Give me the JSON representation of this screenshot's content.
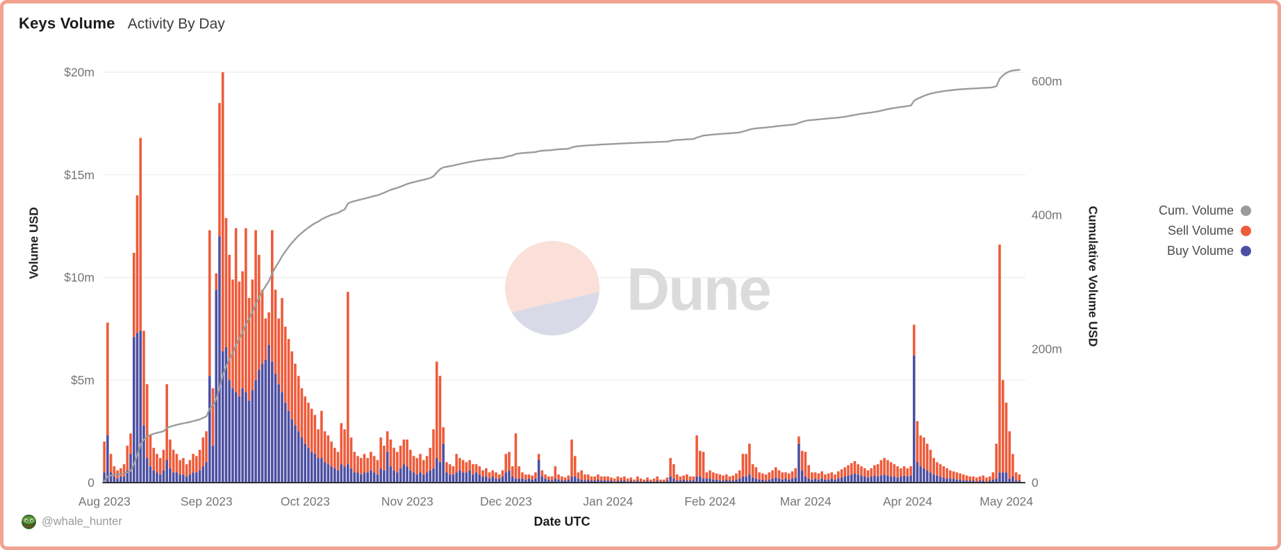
{
  "header": {
    "title": "Keys Volume",
    "subtitle": "Activity By Day"
  },
  "watermark": {
    "brand": "Dune"
  },
  "attribution": {
    "handle": "@whale_hunter"
  },
  "legend": [
    {
      "label": "Cum. Volume",
      "color": "#9B9B9B"
    },
    {
      "label": "Sell Volume",
      "color": "#EE5B3A"
    },
    {
      "label": "Buy Volume",
      "color": "#4C4FA1"
    }
  ],
  "axes": {
    "left": {
      "title": "Volume USD",
      "ticks": [
        "$20m",
        "$15m",
        "$10m",
        "$5m",
        "0"
      ],
      "tick_values_m": [
        20,
        15,
        10,
        5,
        0
      ]
    },
    "right": {
      "title": "Cumulative Volume USD",
      "ticks": [
        "600m",
        "400m",
        "200m",
        "0"
      ],
      "tick_values_m": [
        600,
        400,
        200,
        0
      ]
    },
    "x": {
      "title": "Date UTC",
      "ticks": [
        "Aug 2023",
        "Sep 2023",
        "Oct 2023",
        "Nov 2023",
        "Dec 2023",
        "Jan 2024",
        "Feb 2024",
        "Mar 2024",
        "Apr 2024",
        "May 2024"
      ]
    }
  },
  "chart_data": {
    "type": "combo_stacked_bar_line",
    "title": "Keys Volume — Activity By Day",
    "xlabel": "Date UTC",
    "ylabel_left": "Volume USD",
    "ylabel_right": "Cumulative Volume USD",
    "unit": "million USD per day",
    "y_left_range_m": [
      0,
      20
    ],
    "y_right_range_m": [
      0,
      600
    ],
    "grid": true,
    "legend_position": "right",
    "colors": {
      "buy": "#4C4FA1",
      "sell": "#EE5B3A",
      "cum": "#9B9B9B"
    },
    "series_names": [
      "Buy Volume",
      "Sell Volume",
      "Cum. Volume"
    ],
    "cumulative_end_m": 617,
    "day_format": "[buy_m, sell_m] stacked; totals estimated from pixels",
    "months": [
      {
        "label": "Aug 2023",
        "days": [
          [
            0.5,
            1.5
          ],
          [
            2.3,
            5.5
          ],
          [
            0.5,
            0.9
          ],
          [
            0.3,
            0.5
          ],
          [
            0.2,
            0.4
          ],
          [
            0.3,
            0.4
          ],
          [
            0.3,
            0.6
          ],
          [
            0.6,
            1.2
          ],
          [
            1.4,
            1.0
          ],
          [
            7.1,
            4.1
          ],
          [
            7.3,
            6.7
          ],
          [
            7.4,
            9.4
          ],
          [
            2.8,
            4.6
          ],
          [
            1.2,
            3.6
          ],
          [
            0.8,
            1.5
          ],
          [
            0.6,
            1.1
          ],
          [
            0.5,
            0.9
          ],
          [
            0.4,
            0.8
          ],
          [
            0.6,
            1.0
          ],
          [
            1.1,
            3.7
          ],
          [
            0.7,
            1.4
          ],
          [
            0.5,
            1.1
          ],
          [
            0.5,
            0.9
          ],
          [
            0.4,
            0.7
          ],
          [
            0.4,
            0.8
          ],
          [
            0.3,
            0.6
          ],
          [
            0.4,
            0.7
          ],
          [
            0.5,
            0.9
          ],
          [
            0.5,
            0.8
          ],
          [
            0.6,
            1.0
          ],
          [
            0.8,
            1.4
          ]
        ]
      },
      {
        "label": "Sep 2023",
        "days": [
          [
            1.0,
            1.5
          ],
          [
            5.2,
            7.1
          ],
          [
            1.8,
            2.8
          ],
          [
            9.4,
            0.8
          ],
          [
            12.0,
            6.5
          ],
          [
            6.4,
            13.6
          ],
          [
            6.6,
            6.3
          ],
          [
            5.0,
            6.1
          ],
          [
            4.6,
            5.3
          ],
          [
            4.4,
            8.0
          ],
          [
            4.2,
            5.6
          ],
          [
            4.6,
            5.7
          ],
          [
            4.4,
            8.0
          ],
          [
            4.0,
            5.0
          ],
          [
            4.5,
            5.4
          ],
          [
            5.0,
            7.3
          ],
          [
            5.5,
            5.6
          ],
          [
            5.8,
            3.6
          ],
          [
            6.0,
            2.0
          ],
          [
            6.7,
            1.6
          ],
          [
            5.9,
            6.4
          ],
          [
            5.3,
            4.1
          ],
          [
            4.8,
            3.2
          ],
          [
            4.4,
            4.6
          ],
          [
            3.9,
            3.7
          ],
          [
            3.5,
            3.5
          ],
          [
            3.1,
            3.3
          ],
          [
            2.8,
            3.0
          ],
          [
            2.5,
            2.7
          ],
          [
            2.2,
            2.4
          ]
        ]
      },
      {
        "label": "Oct 2023",
        "days": [
          [
            1.9,
            2.3
          ],
          [
            1.7,
            2.2
          ],
          [
            1.5,
            2.1
          ],
          [
            1.4,
            1.9
          ],
          [
            1.2,
            1.4
          ],
          [
            1.2,
            2.3
          ],
          [
            1.0,
            1.5
          ],
          [
            0.9,
            1.4
          ],
          [
            0.8,
            1.2
          ],
          [
            0.7,
            1.0
          ],
          [
            0.6,
            0.9
          ],
          [
            0.9,
            2.0
          ],
          [
            0.8,
            1.8
          ],
          [
            0.9,
            8.4
          ],
          [
            0.7,
            1.5
          ],
          [
            0.5,
            1.0
          ],
          [
            0.5,
            0.8
          ],
          [
            0.4,
            0.8
          ],
          [
            0.5,
            0.9
          ],
          [
            0.5,
            0.7
          ],
          [
            0.6,
            0.9
          ],
          [
            0.5,
            0.8
          ],
          [
            0.4,
            0.7
          ],
          [
            0.7,
            1.5
          ],
          [
            0.6,
            1.2
          ],
          [
            1.5,
            1.0
          ],
          [
            0.8,
            1.3
          ],
          [
            0.6,
            1.1
          ],
          [
            0.5,
            1.0
          ],
          [
            0.7,
            1.1
          ],
          [
            0.9,
            1.2
          ]
        ]
      },
      {
        "label": "Nov 2023",
        "days": [
          [
            0.8,
            1.3
          ],
          [
            0.6,
            1.0
          ],
          [
            0.5,
            0.8
          ],
          [
            0.4,
            0.8
          ],
          [
            0.5,
            0.9
          ],
          [
            0.4,
            0.7
          ],
          [
            0.5,
            0.8
          ],
          [
            0.6,
            1.1
          ],
          [
            0.7,
            1.9
          ],
          [
            1.2,
            4.7
          ],
          [
            1.0,
            4.2
          ],
          [
            1.9,
            0.8
          ],
          [
            0.5,
            0.5
          ],
          [
            0.4,
            0.5
          ],
          [
            0.4,
            0.4
          ],
          [
            0.5,
            0.9
          ],
          [
            0.6,
            0.6
          ],
          [
            0.5,
            0.6
          ],
          [
            0.5,
            0.5
          ],
          [
            0.6,
            0.5
          ],
          [
            0.4,
            0.5
          ],
          [
            0.5,
            0.4
          ],
          [
            0.4,
            0.4
          ],
          [
            0.3,
            0.3
          ],
          [
            0.3,
            0.4
          ],
          [
            0.2,
            0.3
          ],
          [
            0.3,
            0.3
          ],
          [
            0.2,
            0.3
          ],
          [
            0.2,
            0.2
          ],
          [
            0.3,
            0.3
          ]
        ]
      },
      {
        "label": "Dec 2023",
        "days": [
          [
            0.5,
            0.9
          ],
          [
            0.6,
            0.9
          ],
          [
            0.3,
            0.5
          ],
          [
            0.2,
            2.2
          ],
          [
            0.2,
            0.6
          ],
          [
            0.2,
            0.3
          ],
          [
            0.15,
            0.25
          ],
          [
            0.2,
            0.2
          ],
          [
            0.15,
            0.2
          ],
          [
            0.2,
            0.3
          ],
          [
            1.1,
            0.3
          ],
          [
            0.3,
            0.3
          ],
          [
            0.2,
            0.2
          ],
          [
            0.15,
            0.15
          ],
          [
            0.1,
            0.2
          ],
          [
            0.2,
            0.6
          ],
          [
            0.15,
            0.25
          ],
          [
            0.1,
            0.2
          ],
          [
            0.1,
            0.15
          ],
          [
            0.15,
            0.2
          ],
          [
            0.3,
            1.8
          ],
          [
            0.3,
            1.0
          ],
          [
            0.2,
            0.3
          ],
          [
            0.15,
            0.45
          ],
          [
            0.1,
            0.3
          ],
          [
            0.15,
            0.25
          ],
          [
            0.1,
            0.2
          ],
          [
            0.1,
            0.2
          ],
          [
            0.15,
            0.25
          ],
          [
            0.1,
            0.2
          ],
          [
            0.1,
            0.2
          ]
        ]
      },
      {
        "label": "Jan 2024",
        "days": [
          [
            0.1,
            0.2
          ],
          [
            0.1,
            0.15
          ],
          [
            0.05,
            0.15
          ],
          [
            0.1,
            0.2
          ],
          [
            0.1,
            0.15
          ],
          [
            0.1,
            0.2
          ],
          [
            0.05,
            0.15
          ],
          [
            0.1,
            0.15
          ],
          [
            0.05,
            0.1
          ],
          [
            0.1,
            0.2
          ],
          [
            0.05,
            0.15
          ],
          [
            0.05,
            0.1
          ],
          [
            0.1,
            0.15
          ],
          [
            0.05,
            0.1
          ],
          [
            0.05,
            0.15
          ],
          [
            0.1,
            0.2
          ],
          [
            0.05,
            0.1
          ],
          [
            0.05,
            0.1
          ],
          [
            0.1,
            0.15
          ],
          [
            0.3,
            0.9
          ],
          [
            0.2,
            0.7
          ],
          [
            0.1,
            0.3
          ],
          [
            0.1,
            0.2
          ],
          [
            0.15,
            0.2
          ],
          [
            0.1,
            0.3
          ],
          [
            0.1,
            0.2
          ],
          [
            0.1,
            0.2
          ],
          [
            0.3,
            2.0
          ],
          [
            0.3,
            1.25
          ],
          [
            0.2,
            1.3
          ],
          [
            0.2,
            0.3
          ]
        ]
      },
      {
        "label": "Feb 2024",
        "days": [
          [
            0.2,
            0.4
          ],
          [
            0.15,
            0.35
          ],
          [
            0.15,
            0.3
          ],
          [
            0.1,
            0.3
          ],
          [
            0.1,
            0.25
          ],
          [
            0.15,
            0.25
          ],
          [
            0.1,
            0.2
          ],
          [
            0.1,
            0.25
          ],
          [
            0.15,
            0.3
          ],
          [
            0.2,
            0.4
          ],
          [
            0.3,
            1.1
          ],
          [
            0.3,
            1.1
          ],
          [
            0.4,
            1.5
          ],
          [
            0.25,
            0.65
          ],
          [
            0.2,
            0.55
          ],
          [
            0.15,
            0.35
          ],
          [
            0.15,
            0.3
          ],
          [
            0.1,
            0.3
          ],
          [
            0.15,
            0.35
          ],
          [
            0.2,
            0.4
          ],
          [
            0.25,
            0.5
          ],
          [
            0.2,
            0.4
          ],
          [
            0.15,
            0.35
          ],
          [
            0.2,
            0.3
          ],
          [
            0.15,
            0.3
          ],
          [
            0.2,
            0.35
          ],
          [
            0.25,
            0.45
          ],
          [
            1.9,
            0.35
          ],
          [
            0.6,
            0.95
          ]
        ]
      },
      {
        "label": "Mar 2024",
        "days": [
          [
            0.3,
            1.2
          ],
          [
            0.2,
            0.65
          ],
          [
            0.15,
            0.35
          ],
          [
            0.2,
            0.3
          ],
          [
            0.15,
            0.3
          ],
          [
            0.2,
            0.35
          ],
          [
            0.15,
            0.25
          ],
          [
            0.15,
            0.3
          ],
          [
            0.2,
            0.3
          ],
          [
            0.15,
            0.25
          ],
          [
            0.2,
            0.35
          ],
          [
            0.25,
            0.4
          ],
          [
            0.3,
            0.45
          ],
          [
            0.35,
            0.5
          ],
          [
            0.4,
            0.55
          ],
          [
            0.45,
            0.6
          ],
          [
            0.4,
            0.5
          ],
          [
            0.35,
            0.45
          ],
          [
            0.3,
            0.4
          ],
          [
            0.25,
            0.35
          ],
          [
            0.3,
            0.4
          ],
          [
            0.35,
            0.5
          ],
          [
            0.3,
            0.6
          ],
          [
            0.35,
            0.75
          ],
          [
            0.4,
            0.8
          ],
          [
            0.35,
            0.75
          ],
          [
            0.3,
            0.7
          ],
          [
            0.3,
            0.6
          ],
          [
            0.25,
            0.55
          ],
          [
            0.3,
            0.4
          ],
          [
            0.35,
            0.45
          ]
        ]
      },
      {
        "label": "Apr 2024",
        "days": [
          [
            0.3,
            0.4
          ],
          [
            0.35,
            0.45
          ],
          [
            6.2,
            1.5
          ],
          [
            1.0,
            2.0
          ],
          [
            0.8,
            1.5
          ],
          [
            0.7,
            1.5
          ],
          [
            0.6,
            1.3
          ],
          [
            0.5,
            1.1
          ],
          [
            0.4,
            0.8
          ],
          [
            0.35,
            0.65
          ],
          [
            0.3,
            0.6
          ],
          [
            0.25,
            0.55
          ],
          [
            0.2,
            0.5
          ],
          [
            0.2,
            0.4
          ],
          [
            0.2,
            0.35
          ],
          [
            0.15,
            0.35
          ],
          [
            0.15,
            0.3
          ],
          [
            0.1,
            0.3
          ],
          [
            0.1,
            0.25
          ],
          [
            0.1,
            0.2
          ],
          [
            0.1,
            0.2
          ],
          [
            0.05,
            0.2
          ],
          [
            0.1,
            0.2
          ],
          [
            0.1,
            0.25
          ],
          [
            0.05,
            0.2
          ],
          [
            0.1,
            0.2
          ],
          [
            0.15,
            0.35
          ],
          [
            0.2,
            1.7
          ],
          [
            0.5,
            11.1
          ],
          [
            0.5,
            4.5
          ]
        ]
      },
      {
        "label": "May 2024",
        "days": [
          [
            0.5,
            3.4
          ],
          [
            0.2,
            2.3
          ],
          [
            0.3,
            1.1
          ],
          [
            0.1,
            0.4
          ],
          [
            0.1,
            0.3
          ]
        ]
      }
    ]
  }
}
